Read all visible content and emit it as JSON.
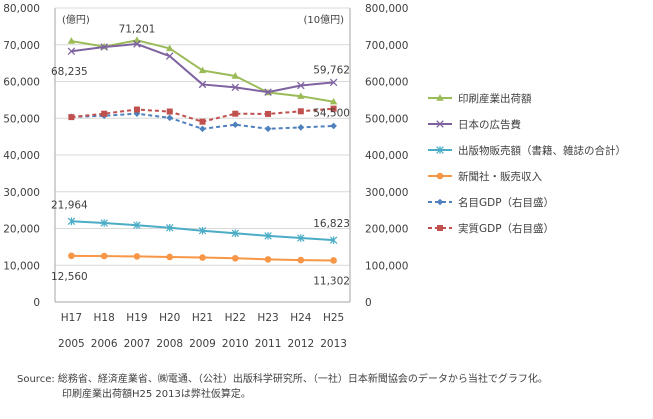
{
  "chart_data": {
    "type": "line",
    "units": {
      "left": "(億円)",
      "right": "(10億円)"
    },
    "x_labels_top": [
      "H17",
      "H18",
      "H19",
      "H20",
      "H21",
      "H22",
      "H23",
      "H24",
      "H25"
    ],
    "x_labels_bottom": [
      "2005",
      "2006",
      "2007",
      "2008",
      "2009",
      "2010",
      "2011",
      "2012",
      "2013"
    ],
    "left_axis": {
      "min": 0,
      "max": 80000,
      "step": 10000,
      "tick_labels": [
        "0",
        "10,000",
        "20,000",
        "30,000",
        "40,000",
        "50,000",
        "60,000",
        "70,000",
        "80,000"
      ]
    },
    "right_axis": {
      "min": 0,
      "max": 800000,
      "step": 100000,
      "tick_labels": [
        "0",
        "100,000",
        "200,000",
        "300,000",
        "400,000",
        "500,000",
        "600,000",
        "700,000",
        "800,000"
      ]
    },
    "grid": "horizontal",
    "legend_position": "right",
    "series": [
      {
        "name": "印刷産業出荷額",
        "axis": "left",
        "color": "#9bbb59",
        "marker": "triangle",
        "dash": false,
        "values": [
          71000,
          69500,
          71201,
          69000,
          63000,
          61500,
          57000,
          56000,
          54500
        ]
      },
      {
        "name": "日本の広告費",
        "axis": "left",
        "color": "#7f63a1",
        "marker": "x",
        "dash": false,
        "values": [
          68235,
          69400,
          70200,
          66900,
          59200,
          58400,
          57100,
          58900,
          59762
        ]
      },
      {
        "name": "出版物販売額（書籍、雑誌の合計）",
        "axis": "left",
        "color": "#4bacc6",
        "marker": "star",
        "dash": false,
        "values": [
          21964,
          21500,
          20900,
          20200,
          19400,
          18700,
          18000,
          17400,
          16823
        ]
      },
      {
        "name": "新聞社・販売収入",
        "axis": "left",
        "color": "#f79646",
        "marker": "circle",
        "dash": false,
        "values": [
          12560,
          12500,
          12400,
          12250,
          12100,
          11900,
          11600,
          11400,
          11302
        ]
      },
      {
        "name": "名目GDP（右目盛）",
        "axis": "right",
        "color": "#4f81bd",
        "marker": "diamond",
        "dash": true,
        "values": [
          503900,
          506700,
          512500,
          501200,
          471100,
          482400,
          471300,
          475100,
          479100
        ]
      },
      {
        "name": "実質GDP（右目盛）",
        "axis": "right",
        "color": "#c0504d",
        "marker": "square",
        "dash": true,
        "values": [
          503100,
          512400,
          523700,
          518200,
          490600,
          512400,
          511700,
          518900,
          526100
        ]
      }
    ],
    "data_labels": [
      {
        "series": 0,
        "index": 2,
        "text": "71,201"
      },
      {
        "series": 0,
        "index": 8,
        "text": "54,500"
      },
      {
        "series": 1,
        "index": 0,
        "text": "68,235"
      },
      {
        "series": 1,
        "index": 8,
        "text": "59,762"
      },
      {
        "series": 2,
        "index": 0,
        "text": "21,964"
      },
      {
        "series": 2,
        "index": 8,
        "text": "16,823"
      },
      {
        "series": 3,
        "index": 0,
        "text": "12,560"
      },
      {
        "series": 3,
        "index": 8,
        "text": "11,302"
      }
    ]
  },
  "source": {
    "line1": "Source: 総務省、経済産業省、㈱電通、（公社）出版科学研究所、（一社）日本新聞協会のデータから当社でグラフ化。",
    "line2": "印刷産業出荷額H25 2013は弊社仮算定。"
  }
}
